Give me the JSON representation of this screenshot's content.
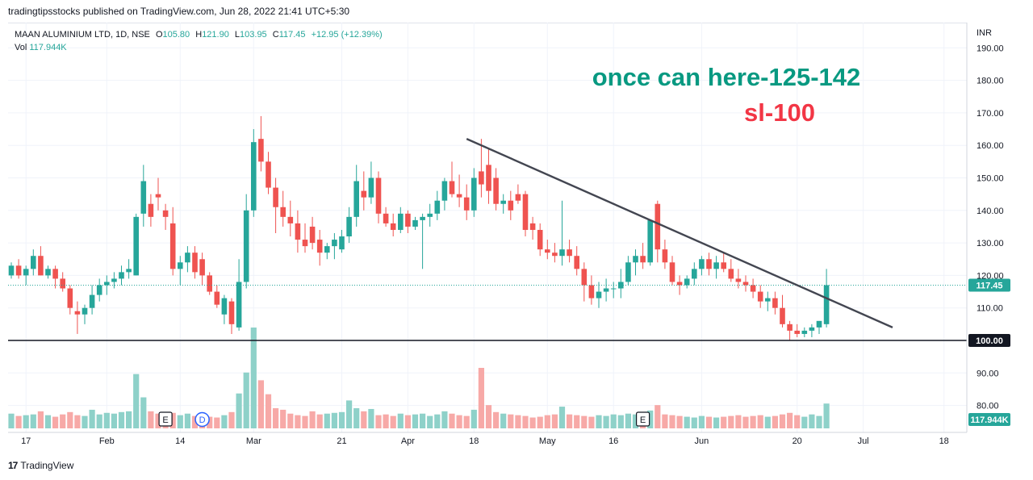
{
  "header": {
    "publisher": "tradingtipsstocks published on TradingView.com, Jun 28, 2022 21:41 UTC+5:30"
  },
  "legend": {
    "symbol": "MAAN ALUMINIUM LTD, 1D, NSE",
    "o_label": "O",
    "o_value": "105.80",
    "h_label": "H",
    "h_value": "121.90",
    "l_label": "L",
    "l_value": "103.95",
    "c_label": "C",
    "c_value": "117.45",
    "change": "+12.95 (+12.39%)",
    "vol_label": "Vol",
    "vol_value": "117.944K"
  },
  "annotations": {
    "target_text": "once can here-125-142",
    "sl_text": "sl-100"
  },
  "footer": {
    "logo": "17",
    "brand": "TradingView"
  },
  "chart_data": {
    "type": "candlestick",
    "currency": "INR",
    "ylim": [
      75,
      195
    ],
    "y_ticks": [
      80,
      90,
      100,
      110,
      120,
      130,
      140,
      150,
      160,
      170,
      180,
      190
    ],
    "x_tick_labels": [
      {
        "label": "17",
        "bar": 2
      },
      {
        "label": "Feb",
        "bar": 13
      },
      {
        "label": "14",
        "bar": 23
      },
      {
        "label": "Mar",
        "bar": 33
      },
      {
        "label": "21",
        "bar": 45
      },
      {
        "label": "Apr",
        "bar": 54
      },
      {
        "label": "18",
        "bar": 63
      },
      {
        "label": "May",
        "bar": 73
      },
      {
        "label": "16",
        "bar": 82
      },
      {
        "label": "Jun",
        "bar": 94
      },
      {
        "label": "20",
        "bar": 107
      },
      {
        "label": "Jul",
        "bar": 116
      },
      {
        "label": "18",
        "bar": 127
      }
    ],
    "last_price": "117.45",
    "level_label": "100.00",
    "volume_label": "117.944K",
    "horizontal_line": 100,
    "trendline": {
      "start_bar": 62,
      "start_price": 162,
      "end_bar": 120,
      "end_price": 104
    },
    "event_markers": [
      {
        "label": "E",
        "bar": 21
      },
      {
        "label": "D",
        "bar": 26
      },
      {
        "label": "E",
        "bar": 86
      }
    ],
    "colors": {
      "up": "#26a69a",
      "down": "#ef5350",
      "up_vol": "#8ed1c9",
      "down_vol": "#f7a9a7",
      "annotation_green": "#089981",
      "annotation_red": "#f23645"
    },
    "candles": [
      [
        120,
        124,
        119,
        123,
        19
      ],
      [
        123,
        125,
        119,
        120,
        16
      ],
      [
        120,
        123,
        117,
        122,
        17
      ],
      [
        122,
        128,
        120,
        126,
        18
      ],
      [
        126,
        129,
        120,
        120,
        22
      ],
      [
        120,
        123,
        119,
        122,
        17
      ],
      [
        122,
        123,
        116,
        119,
        15
      ],
      [
        119,
        121,
        115,
        116,
        18
      ],
      [
        116,
        117,
        108,
        110,
        21
      ],
      [
        109,
        112,
        102,
        108,
        17
      ],
      [
        108,
        111,
        105,
        110,
        16
      ],
      [
        110,
        117,
        108,
        114,
        24
      ],
      [
        114,
        119,
        112,
        117,
        18
      ],
      [
        117,
        120,
        114,
        118,
        20
      ],
      [
        118,
        121,
        116,
        119,
        19
      ],
      [
        119,
        123,
        117,
        121,
        21
      ],
      [
        121,
        125,
        119,
        122,
        22
      ],
      [
        120,
        139,
        120,
        138,
        70
      ],
      [
        139,
        154,
        135,
        149,
        40
      ],
      [
        142,
        145,
        135,
        138,
        22
      ],
      [
        145,
        150,
        140,
        144,
        19
      ],
      [
        140,
        142,
        134,
        138,
        17
      ],
      [
        136,
        141,
        120,
        122,
        20
      ],
      [
        122,
        126,
        117,
        124,
        17
      ],
      [
        124,
        129,
        121,
        127,
        19
      ],
      [
        127,
        129,
        119,
        121,
        16
      ],
      [
        125,
        127,
        117,
        120,
        17
      ],
      [
        120,
        121,
        114,
        115,
        15
      ],
      [
        115,
        117,
        110,
        111,
        14
      ],
      [
        108,
        114,
        105,
        113,
        17
      ],
      [
        112,
        113,
        102,
        105,
        21
      ],
      [
        104,
        125,
        103,
        118,
        45
      ],
      [
        118,
        145,
        116,
        140,
        72
      ],
      [
        140,
        165,
        138,
        161,
        130
      ],
      [
        162,
        169,
        152,
        155,
        62
      ],
      [
        155,
        158,
        145,
        147,
        44
      ],
      [
        147,
        150,
        133,
        141,
        26
      ],
      [
        141,
        146,
        135,
        138,
        24
      ],
      [
        138,
        143,
        132,
        136,
        19
      ],
      [
        136,
        140,
        127,
        131,
        17
      ],
      [
        131,
        136,
        127,
        129,
        16
      ],
      [
        135,
        138,
        128,
        130,
        22
      ],
      [
        131,
        134,
        123,
        127,
        18
      ],
      [
        127,
        130,
        125,
        129,
        19
      ],
      [
        129,
        133,
        125,
        131,
        20
      ],
      [
        128,
        134,
        127,
        132,
        21
      ],
      [
        132,
        141,
        130,
        138,
        36
      ],
      [
        138,
        154,
        135,
        149,
        26
      ],
      [
        146,
        152,
        140,
        144,
        22
      ],
      [
        144,
        155,
        142,
        150,
        25
      ],
      [
        150,
        152,
        136,
        139,
        17
      ],
      [
        139,
        141,
        135,
        136,
        18
      ],
      [
        136,
        139,
        132,
        134,
        16
      ],
      [
        134,
        141,
        133,
        139,
        19
      ],
      [
        139,
        140,
        133,
        135,
        17
      ],
      [
        135,
        138,
        134,
        137,
        18
      ],
      [
        137,
        139,
        122,
        138,
        19
      ],
      [
        138,
        142,
        135,
        139,
        16
      ],
      [
        139,
        146,
        137,
        143,
        18
      ],
      [
        143,
        150,
        140,
        149,
        22
      ],
      [
        149,
        155,
        144,
        145,
        19
      ],
      [
        145,
        151,
        141,
        144,
        17
      ],
      [
        144,
        148,
        137,
        140,
        16
      ],
      [
        140,
        153,
        138,
        150,
        24
      ],
      [
        152,
        162,
        144,
        148,
        78
      ],
      [
        154,
        159,
        142,
        146,
        30
      ],
      [
        150,
        153,
        140,
        142,
        21
      ],
      [
        142,
        145,
        139,
        143,
        19
      ],
      [
        143,
        146,
        137,
        140,
        18
      ],
      [
        145,
        148,
        142,
        143,
        17
      ],
      [
        145,
        146,
        132,
        134,
        16
      ],
      [
        136,
        138,
        131,
        134,
        14
      ],
      [
        134,
        136,
        126,
        128,
        15
      ],
      [
        128,
        131,
        125,
        127,
        17
      ],
      [
        127,
        130,
        124,
        126,
        18
      ],
      [
        126,
        143,
        123,
        128,
        28
      ],
      [
        128,
        131,
        124,
        126,
        18
      ],
      [
        126,
        129,
        120,
        122,
        17
      ],
      [
        122,
        124,
        112,
        117,
        16
      ],
      [
        117,
        120,
        111,
        113,
        15
      ],
      [
        113,
        118,
        110,
        115,
        17
      ],
      [
        115,
        119,
        112,
        116,
        16
      ],
      [
        116,
        118,
        113,
        116,
        18
      ],
      [
        116,
        122,
        113,
        118,
        17
      ],
      [
        118,
        126,
        117,
        124,
        19
      ],
      [
        124,
        128,
        120,
        126,
        18
      ],
      [
        126,
        130,
        122,
        124,
        17
      ],
      [
        124,
        137,
        123,
        137,
        23
      ],
      [
        142,
        143,
        124,
        128,
        30
      ],
      [
        128,
        131,
        122,
        124,
        18
      ],
      [
        124,
        126,
        117,
        118,
        17
      ],
      [
        118,
        120,
        114,
        117,
        16
      ],
      [
        117,
        120,
        116,
        119,
        15
      ],
      [
        119,
        124,
        117,
        122,
        14
      ],
      [
        122,
        126,
        120,
        125,
        16
      ],
      [
        125,
        127,
        120,
        122,
        15
      ],
      [
        122,
        126,
        119,
        124,
        14
      ],
      [
        124,
        127,
        121,
        122,
        15
      ],
      [
        122,
        125,
        118,
        119,
        16
      ],
      [
        119,
        122,
        116,
        118,
        17
      ],
      [
        118,
        120,
        115,
        117,
        15
      ],
      [
        117,
        119,
        113,
        115,
        16
      ],
      [
        115,
        117,
        110,
        112,
        17
      ],
      [
        112,
        115,
        109,
        113,
        15
      ],
      [
        113,
        115,
        108,
        110,
        16
      ],
      [
        110,
        114,
        104,
        105,
        18
      ],
      [
        105,
        106,
        100,
        103,
        20
      ],
      [
        103,
        105,
        101,
        102,
        17
      ],
      [
        102,
        104,
        101,
        103,
        15
      ],
      [
        103,
        105,
        101,
        104,
        18
      ],
      [
        104,
        106,
        102,
        106,
        16
      ],
      [
        105,
        122,
        104,
        117,
        32
      ]
    ]
  }
}
